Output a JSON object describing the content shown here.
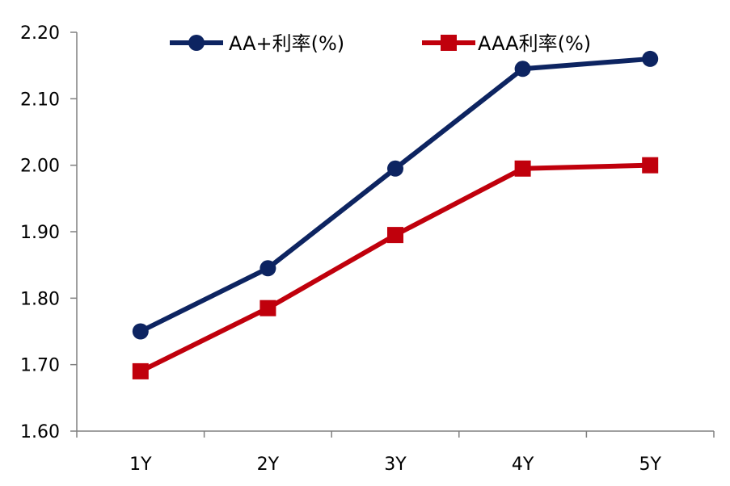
{
  "chart_data": {
    "type": "line",
    "categories": [
      "1Y",
      "2Y",
      "3Y",
      "4Y",
      "5Y"
    ],
    "series": [
      {
        "name": "AA+利率(%)",
        "values": [
          1.75,
          1.845,
          1.995,
          2.145,
          2.16
        ],
        "color": "#0d2461",
        "marker": "circle"
      },
      {
        "name": "AAA利率(%)",
        "values": [
          1.69,
          1.785,
          1.895,
          1.995,
          2.0
        ],
        "color": "#c0000c",
        "marker": "square"
      }
    ],
    "y_ticks": [
      "1.60",
      "1.70",
      "1.80",
      "1.90",
      "2.00",
      "2.10",
      "2.20"
    ],
    "ylim": [
      1.6,
      2.2
    ],
    "grid": false,
    "legend_position": "top"
  }
}
